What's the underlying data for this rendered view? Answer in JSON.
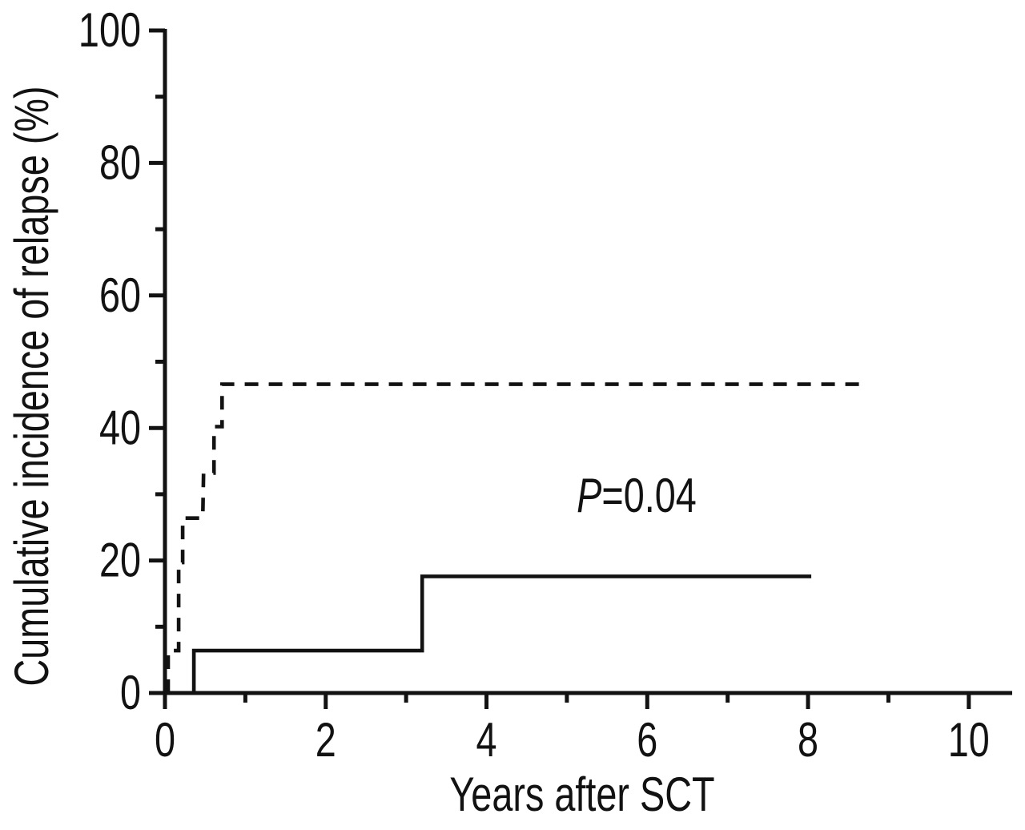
{
  "figure": {
    "background": "#ffffff",
    "ink": "#121212"
  },
  "chart_data": {
    "type": "line",
    "subtype": "step",
    "title": "",
    "xlabel": "Years after SCT",
    "ylabel": "Cumulative incidence of relapse (%)",
    "xlim": [
      0,
      10.52
    ],
    "ylim": [
      0,
      100
    ],
    "x_major_ticks": [
      0,
      2,
      4,
      6,
      8,
      10
    ],
    "x_minor_ticks": [
      1,
      3,
      5,
      7,
      9
    ],
    "y_major_ticks": [
      0,
      20,
      40,
      60,
      80,
      100
    ],
    "y_minor_ticks": [
      10,
      30,
      50,
      70,
      90
    ],
    "grid": false,
    "legend": "none",
    "annotation": {
      "symbol": "P",
      "value": "=0.04",
      "x": 5.87,
      "y": 29.7
    },
    "series": [
      {
        "name": "dashed-group",
        "line_style": "dashed",
        "color": "#121212",
        "final_value": 46.6,
        "points": [
          [
            0.04,
            0
          ],
          [
            0.04,
            6.4
          ],
          [
            0.17,
            6.4
          ],
          [
            0.17,
            19.7
          ],
          [
            0.22,
            19.7
          ],
          [
            0.22,
            26.4
          ],
          [
            0.47,
            26.4
          ],
          [
            0.48,
            33.2
          ],
          [
            0.61,
            33.2
          ],
          [
            0.61,
            40.2
          ],
          [
            0.71,
            40.2
          ],
          [
            0.71,
            46.6
          ],
          [
            8.7,
            46.6
          ]
        ]
      },
      {
        "name": "solid-group",
        "line_style": "solid",
        "color": "#121212",
        "final_value": 17.6,
        "points": [
          [
            0,
            0
          ],
          [
            0.36,
            0
          ],
          [
            0.36,
            6.4
          ],
          [
            3.2,
            6.4
          ],
          [
            3.2,
            17.6
          ],
          [
            8.04,
            17.6
          ]
        ]
      }
    ]
  }
}
